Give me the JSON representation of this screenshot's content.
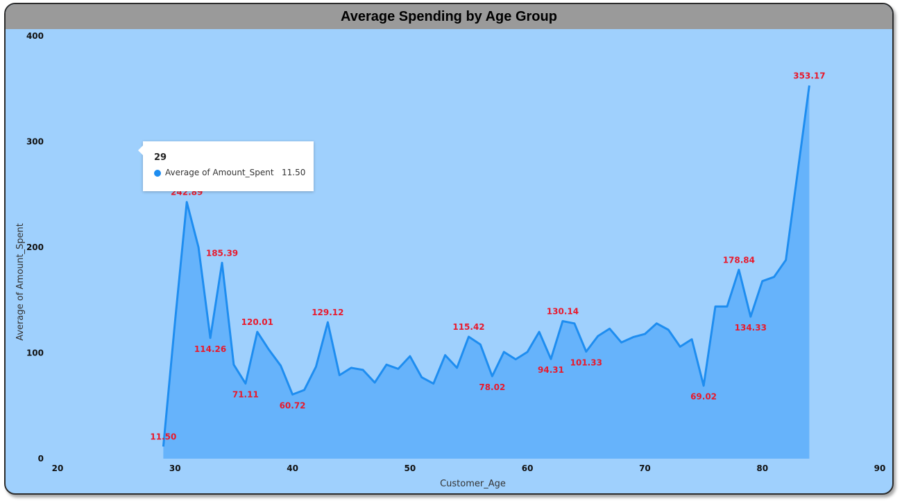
{
  "title": "Average Spending by Age Group",
  "colors": {
    "background": "#9fd0fd",
    "title_bar": "#9a9a9a",
    "line": "#1e8df0",
    "area": "#66b3fb",
    "data_label": "#e8192c"
  },
  "tooltip": {
    "title": "29",
    "series_label": "Average of Amount_Spent",
    "value": "11.50",
    "icon": "legend-dot-icon"
  },
  "chart_data": {
    "type": "area",
    "title": "Average Spending by Age Group",
    "xlabel": "Customer_Age",
    "ylabel": "Average of Amount_Spent",
    "xlim": [
      20,
      90
    ],
    "ylim": [
      0,
      400
    ],
    "x_ticks": [
      20,
      30,
      40,
      50,
      60,
      70,
      80,
      90
    ],
    "y_ticks": [
      0,
      100,
      200,
      300,
      400
    ],
    "grid": false,
    "series": [
      {
        "name": "Average of Amount_Spent",
        "x": [
          29,
          30,
          31,
          32,
          33,
          34,
          35,
          36,
          37,
          38,
          39,
          40,
          41,
          42,
          43,
          44,
          45,
          46,
          47,
          48,
          49,
          50,
          51,
          52,
          53,
          54,
          55,
          56,
          57,
          58,
          59,
          60,
          61,
          62,
          63,
          64,
          65,
          66,
          67,
          68,
          69,
          70,
          71,
          72,
          73,
          74,
          75,
          76,
          77,
          78,
          79,
          80,
          81,
          82,
          84
        ],
        "y": [
          11.5,
          130,
          242.89,
          200,
          114.26,
          185.39,
          89,
          71.11,
          120.01,
          103,
          88,
          60.72,
          65,
          87,
          129.12,
          79,
          86,
          84,
          72,
          89,
          85,
          97,
          77,
          71,
          98,
          86,
          115.42,
          108,
          78.02,
          101,
          94,
          101,
          120,
          94.31,
          130.14,
          128,
          101.33,
          116,
          123,
          110,
          115,
          118,
          128,
          122,
          106,
          113,
          69.02,
          144,
          144,
          178.84,
          134.33,
          168,
          172,
          188,
          353.17
        ]
      }
    ],
    "data_labels": [
      {
        "x": 29,
        "text": "11.50"
      },
      {
        "x": 31,
        "text": "242.89"
      },
      {
        "x": 33,
        "text": "114.26"
      },
      {
        "x": 34,
        "text": "185.39"
      },
      {
        "x": 36,
        "text": "71.11"
      },
      {
        "x": 37,
        "text": "120.01"
      },
      {
        "x": 40,
        "text": "60.72"
      },
      {
        "x": 43,
        "text": "129.12"
      },
      {
        "x": 55,
        "text": "115.42"
      },
      {
        "x": 57,
        "text": "78.02"
      },
      {
        "x": 62,
        "text": "94.31"
      },
      {
        "x": 63,
        "text": "130.14"
      },
      {
        "x": 65,
        "text": "101.33"
      },
      {
        "x": 75,
        "text": "69.02"
      },
      {
        "x": 78,
        "text": "178.84"
      },
      {
        "x": 79,
        "text": "134.33"
      },
      {
        "x": 84,
        "text": "353.17"
      }
    ]
  }
}
